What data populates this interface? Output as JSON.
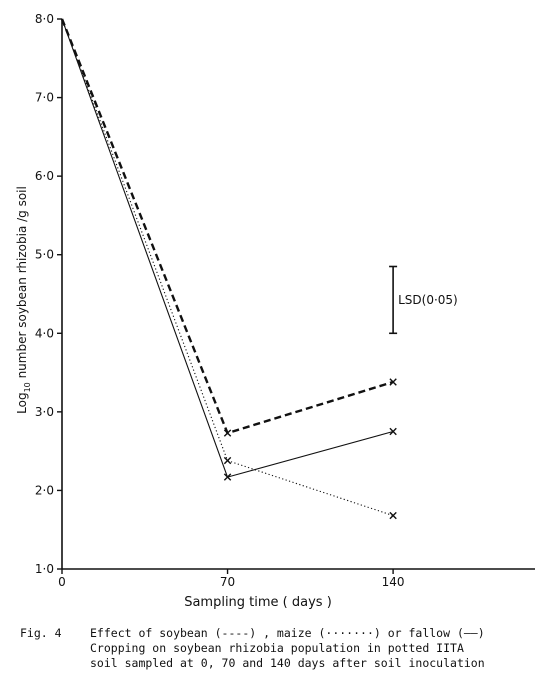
{
  "chart_data": {
    "type": "line",
    "xlabel": "Sampling time  ( days )",
    "ylabel": "Log10 number soybean rhizobia /g soil",
    "ylabel_parts": {
      "prefix": "Log",
      "sub": "10",
      "rest": " number  soybean  rhizobia /g  soil"
    },
    "x_ticks": [
      "0",
      "70",
      "140"
    ],
    "y_ticks": [
      "1·0",
      "2·0",
      "3·0",
      "4·0",
      "5·0",
      "6·0",
      "7·0",
      "8·0"
    ],
    "xlim": [
      0,
      200
    ],
    "ylim": [
      1.0,
      8.0
    ],
    "series": [
      {
        "style": "dashed",
        "x": [
          0,
          70,
          140
        ],
        "y": [
          8.0,
          2.73,
          3.38
        ]
      },
      {
        "style": "dotted",
        "x": [
          0,
          70,
          140
        ],
        "y": [
          8.0,
          2.38,
          1.68
        ]
      },
      {
        "style": "solid",
        "x": [
          0,
          70,
          140
        ],
        "y": [
          8.0,
          2.17,
          2.75
        ]
      }
    ],
    "lsd": {
      "label": "LSD(0·05)",
      "x": 140,
      "y_low": 4.0,
      "y_high": 4.85
    }
  },
  "caption": {
    "fig_number": "Fig. 4",
    "line1": "Effect of soybean (----) , maize (·······) or fallow (——)",
    "line2": "Cropping on soybean rhizobia population in potted IITA",
    "line3": "soil sampled at 0,  70  and  140 days after soil inoculation"
  }
}
